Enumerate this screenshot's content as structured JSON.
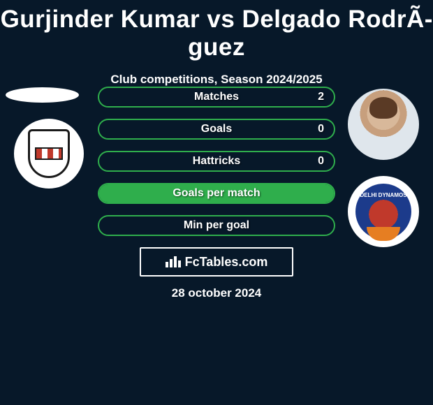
{
  "theme": {
    "background": "#071829",
    "text": "#ffffff",
    "pill_border": "#2fae4c",
    "pill_fill": "#2fae4c"
  },
  "header": {
    "title": "Gurjinder Kumar vs Delgado RodrÃ­guez",
    "subtitle": "Club competitions, Season 2024/2025",
    "title_fontsize": 35,
    "subtitle_fontsize": 17
  },
  "players": {
    "left": {
      "name": "Gurjinder Kumar",
      "club_badge": "northeast-united",
      "avatar": "placeholder-oval"
    },
    "right": {
      "name": "Delgado RodrÃ­guez",
      "club_badge": "delhi-dynamos",
      "avatar": "player-photo"
    }
  },
  "stats": [
    {
      "label": "Matches",
      "value_right": "2",
      "fill_pct": 0
    },
    {
      "label": "Goals",
      "value_right": "0",
      "fill_pct": 0
    },
    {
      "label": "Hattricks",
      "value_right": "0",
      "fill_pct": 0
    },
    {
      "label": "Goals per match",
      "value_right": "",
      "fill_pct": 100
    },
    {
      "label": "Min per goal",
      "value_right": "",
      "fill_pct": 0
    }
  ],
  "brand": {
    "text": "FcTables.com"
  },
  "date": "28 october 2024",
  "badge_right_text": "DELHI DYNAMOS"
}
